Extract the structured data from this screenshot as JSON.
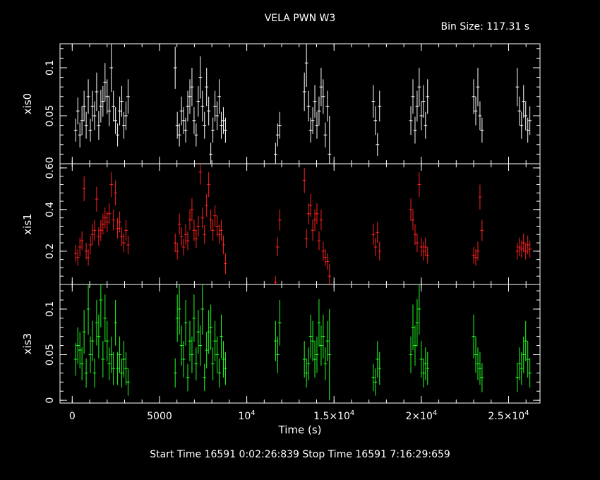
{
  "header": {
    "title": "VELA PWN W3",
    "bin_size": "Bin Size: 117.31 s"
  },
  "footer": {
    "times": "Start Time 16591   0:02:26:839     Stop Time 16591   7:16:29:659"
  },
  "colors": {
    "xis0": "#ffffff",
    "xis1": "#ff2020",
    "xis3": "#20ff20",
    "axes": "#ffffff"
  },
  "chart_data": {
    "type": "scatter",
    "xlabel": "Time (s)",
    "xlim": [
      -700,
      26800
    ],
    "x_ticks": [
      {
        "v": 0,
        "label": "0"
      },
      {
        "v": 5000,
        "label": "5000"
      },
      {
        "v": 10000,
        "label": "10",
        "exp": "4"
      },
      {
        "v": 15000,
        "label": "1.5×10",
        "exp": "4"
      },
      {
        "v": 20000,
        "label": "2×10",
        "exp": "4"
      },
      {
        "v": 25000,
        "label": "2.5×10",
        "exp": "4"
      }
    ],
    "panels": [
      {
        "name": "xis0",
        "ylabel": "xis0",
        "ylim": [
          0,
          0.125
        ],
        "y_ticks": [
          {
            "v": 0.05,
            "label": "0.05"
          },
          {
            "v": 0.1,
            "label": "0.1"
          }
        ],
        "color": "#ffffff",
        "series": {
          "x": [
            200,
            320,
            440,
            560,
            680,
            800,
            920,
            1040,
            1160,
            1280,
            1400,
            1520,
            1640,
            1760,
            1880,
            2000,
            2120,
            2240,
            2360,
            2480,
            2600,
            2720,
            2840,
            2960,
            3080,
            3200,
            5900,
            6020,
            6140,
            6260,
            6380,
            6500,
            6620,
            6740,
            6860,
            6980,
            7100,
            7220,
            7340,
            7460,
            7580,
            7700,
            7820,
            7940,
            8060,
            8180,
            8300,
            8420,
            8540,
            8660,
            8780,
            11650,
            11770,
            11890,
            13300,
            13420,
            13540,
            13660,
            13780,
            13900,
            14020,
            14140,
            14260,
            14380,
            14500,
            14620,
            14740,
            17250,
            17370,
            17490,
            17610,
            19400,
            19520,
            19640,
            19760,
            19880,
            20000,
            20120,
            20240,
            20360,
            23000,
            23120,
            23240,
            23360,
            23480,
            25500,
            25620,
            25740,
            25860,
            25980,
            26100,
            26220
          ],
          "y": [
            0.035,
            0.055,
            0.03,
            0.045,
            0.06,
            0.04,
            0.07,
            0.035,
            0.06,
            0.05,
            0.075,
            0.04,
            0.06,
            0.065,
            0.085,
            0.07,
            0.055,
            0.1,
            0.06,
            0.045,
            0.03,
            0.055,
            0.065,
            0.04,
            0.05,
            0.07,
            0.1,
            0.04,
            0.03,
            0.055,
            0.045,
            0.035,
            0.06,
            0.07,
            0.08,
            0.045,
            0.03,
            0.065,
            0.09,
            0.06,
            0.04,
            0.08,
            0.055,
            0.01,
            0.035,
            0.06,
            0.05,
            0.07,
            0.04,
            0.045,
            0.035,
            0.01,
            0.03,
            0.04,
            0.075,
            0.105,
            0.06,
            0.035,
            0.045,
            0.065,
            0.04,
            0.055,
            0.08,
            0.07,
            0.03,
            0.06,
            0.01,
            0.065,
            0.045,
            0.02,
            0.06,
            0.045,
            0.07,
            0.035,
            0.06,
            0.08,
            0.05,
            0.065,
            0.04,
            0.07,
            0.07,
            0.055,
            0.08,
            0.05,
            0.035,
            0.08,
            0.055,
            0.04,
            0.065,
            0.05,
            0.035,
            0.045
          ],
          "err": [
            0.012,
            0.014,
            0.013,
            0.015,
            0.016,
            0.014,
            0.018,
            0.012,
            0.016,
            0.015,
            0.02,
            0.015,
            0.017,
            0.016,
            0.02,
            0.018,
            0.016,
            0.025,
            0.016,
            0.014,
            0.012,
            0.015,
            0.016,
            0.014,
            0.015,
            0.018,
            0.022,
            0.014,
            0.012,
            0.015,
            0.014,
            0.013,
            0.016,
            0.018,
            0.02,
            0.014,
            0.012,
            0.016,
            0.022,
            0.016,
            0.014,
            0.02,
            0.015,
            0.012,
            0.013,
            0.016,
            0.015,
            0.018,
            0.014,
            0.014,
            0.013,
            0.012,
            0.012,
            0.014,
            0.02,
            0.025,
            0.016,
            0.013,
            0.014,
            0.017,
            0.014,
            0.015,
            0.02,
            0.018,
            0.013,
            0.016,
            0.04,
            0.017,
            0.015,
            0.012,
            0.016,
            0.015,
            0.018,
            0.014,
            0.016,
            0.02,
            0.015,
            0.017,
            0.014,
            0.018,
            0.018,
            0.015,
            0.02,
            0.015,
            0.013,
            0.02,
            0.015,
            0.014,
            0.017,
            0.015,
            0.013,
            0.015
          ]
        }
      },
      {
        "name": "xis1",
        "ylabel": "xis1",
        "ylim": [
          0.04,
          0.62
        ],
        "y_ticks": [
          {
            "v": 0.2,
            "label": "0.2"
          },
          {
            "v": 0.4,
            "label": "0.4"
          },
          {
            "v": 0.6,
            "label": "0.60"
          }
        ],
        "color": "#ff2020",
        "series": {
          "x": [
            200,
            320,
            440,
            560,
            680,
            800,
            920,
            1040,
            1160,
            1280,
            1400,
            1520,
            1640,
            1760,
            1880,
            2000,
            2120,
            2240,
            2360,
            2480,
            2600,
            2720,
            2840,
            2960,
            3080,
            3200,
            5900,
            6020,
            6140,
            6260,
            6380,
            6500,
            6620,
            6740,
            6860,
            6980,
            7100,
            7220,
            7340,
            7460,
            7580,
            7700,
            7820,
            7940,
            8060,
            8180,
            8300,
            8420,
            8540,
            8660,
            8780,
            11650,
            11770,
            11890,
            13300,
            13420,
            13540,
            13660,
            13780,
            13900,
            14020,
            14140,
            14260,
            14380,
            14500,
            14620,
            14740,
            17250,
            17370,
            17490,
            17610,
            19400,
            19520,
            19640,
            19760,
            19880,
            20000,
            20120,
            20240,
            20360,
            23000,
            23120,
            23240,
            23360,
            23480,
            25500,
            25620,
            25740,
            25860,
            25980,
            26100,
            26220
          ],
          "y": [
            0.19,
            0.17,
            0.22,
            0.25,
            0.5,
            0.2,
            0.17,
            0.23,
            0.28,
            0.3,
            0.45,
            0.27,
            0.3,
            0.33,
            0.36,
            0.34,
            0.38,
            0.52,
            0.35,
            0.48,
            0.31,
            0.34,
            0.27,
            0.24,
            0.3,
            0.23,
            0.24,
            0.2,
            0.33,
            0.27,
            0.22,
            0.28,
            0.25,
            0.35,
            0.4,
            0.3,
            0.26,
            0.32,
            0.58,
            0.36,
            0.28,
            0.42,
            0.52,
            0.35,
            0.3,
            0.37,
            0.32,
            0.28,
            0.3,
            0.23,
            0.14,
            0.05,
            0.22,
            0.35,
            0.54,
            0.26,
            0.38,
            0.42,
            0.3,
            0.35,
            0.38,
            0.25,
            0.35,
            0.2,
            0.17,
            0.15,
            0.08,
            0.28,
            0.22,
            0.29,
            0.2,
            0.4,
            0.35,
            0.28,
            0.24,
            0.52,
            0.22,
            0.2,
            0.22,
            0.18,
            0.18,
            0.17,
            0.2,
            0.46,
            0.3,
            0.2,
            0.22,
            0.21,
            0.24,
            0.2,
            0.23,
            0.21
          ],
          "err": [
            0.04,
            0.04,
            0.045,
            0.045,
            0.06,
            0.04,
            0.04,
            0.045,
            0.05,
            0.05,
            0.06,
            0.045,
            0.05,
            0.05,
            0.05,
            0.05,
            0.05,
            0.06,
            0.05,
            0.06,
            0.05,
            0.05,
            0.045,
            0.045,
            0.05,
            0.045,
            0.045,
            0.04,
            0.05,
            0.045,
            0.04,
            0.05,
            0.045,
            0.05,
            0.055,
            0.05,
            0.045,
            0.05,
            0.06,
            0.05,
            0.045,
            0.055,
            0.06,
            0.05,
            0.05,
            0.05,
            0.05,
            0.045,
            0.05,
            0.045,
            0.05,
            0.03,
            0.045,
            0.05,
            0.06,
            0.045,
            0.05,
            0.055,
            0.05,
            0.05,
            0.05,
            0.045,
            0.05,
            0.045,
            0.04,
            0.04,
            0.06,
            0.05,
            0.045,
            0.05,
            0.045,
            0.055,
            0.05,
            0.05,
            0.045,
            0.06,
            0.045,
            0.045,
            0.045,
            0.04,
            0.04,
            0.04,
            0.045,
            0.06,
            0.05,
            0.04,
            0.045,
            0.04,
            0.045,
            0.04,
            0.045,
            0.04
          ]
        }
      },
      {
        "name": "xis3",
        "ylabel": "xis3",
        "ylim": [
          -0.003,
          0.127
        ],
        "y_ticks": [
          {
            "v": 0,
            "label": "0"
          },
          {
            "v": 0.05,
            "label": "0.05"
          },
          {
            "v": 0.1,
            "label": "0.1"
          }
        ],
        "color": "#20ff20",
        "series": {
          "x": [
            200,
            320,
            440,
            560,
            680,
            800,
            920,
            1040,
            1160,
            1280,
            1400,
            1520,
            1640,
            1760,
            1880,
            2000,
            2120,
            2240,
            2360,
            2480,
            2600,
            2720,
            2840,
            2960,
            3080,
            3200,
            5900,
            6020,
            6140,
            6260,
            6380,
            6500,
            6620,
            6740,
            6860,
            6980,
            7100,
            7220,
            7340,
            7460,
            7580,
            7700,
            7820,
            7940,
            8060,
            8180,
            8300,
            8420,
            8540,
            8660,
            8780,
            11650,
            11770,
            11890,
            13300,
            13420,
            13540,
            13660,
            13780,
            13900,
            14020,
            14140,
            14260,
            14380,
            14500,
            14620,
            14740,
            17250,
            17370,
            17490,
            17610,
            19400,
            19520,
            19640,
            19760,
            19880,
            20000,
            20120,
            20240,
            20360,
            23000,
            23120,
            23240,
            23360,
            23480,
            25500,
            25620,
            25740,
            25860,
            25980,
            26100,
            26220
          ],
          "y": [
            0.045,
            0.06,
            0.055,
            0.04,
            0.075,
            0.03,
            0.1,
            0.05,
            0.065,
            0.03,
            0.085,
            0.07,
            0.11,
            0.045,
            0.09,
            0.065,
            0.04,
            0.05,
            0.035,
            0.085,
            0.035,
            0.05,
            0.03,
            0.045,
            0.035,
            0.02,
            0.03,
            0.09,
            0.1,
            0.06,
            0.045,
            0.085,
            0.025,
            0.065,
            0.05,
            0.09,
            0.04,
            0.075,
            0.06,
            0.1,
            0.025,
            0.055,
            0.075,
            0.08,
            0.04,
            0.065,
            0.05,
            0.03,
            0.07,
            0.045,
            0.035,
            0.065,
            0.05,
            0.085,
            0.045,
            0.03,
            0.04,
            0.07,
            0.065,
            0.045,
            0.05,
            0.085,
            0.06,
            0.07,
            0.04,
            0.065,
            0.05,
            0.025,
            0.02,
            0.045,
            0.035,
            0.05,
            0.08,
            0.06,
            0.085,
            0.1,
            0.045,
            0.03,
            0.04,
            0.035,
            0.07,
            0.05,
            0.04,
            0.035,
            0.025,
            0.025,
            0.04,
            0.035,
            0.05,
            0.065,
            0.045,
            0.03
          ],
          "err": [
            0.018,
            0.02,
            0.02,
            0.018,
            0.024,
            0.016,
            0.028,
            0.02,
            0.022,
            0.016,
            0.025,
            0.024,
            0.03,
            0.02,
            0.026,
            0.022,
            0.018,
            0.02,
            0.018,
            0.025,
            0.018,
            0.02,
            0.016,
            0.02,
            0.018,
            0.015,
            0.016,
            0.026,
            0.028,
            0.022,
            0.02,
            0.025,
            0.015,
            0.022,
            0.02,
            0.026,
            0.018,
            0.024,
            0.022,
            0.028,
            0.015,
            0.02,
            0.024,
            0.025,
            0.018,
            0.022,
            0.02,
            0.016,
            0.024,
            0.02,
            0.018,
            0.022,
            0.02,
            0.025,
            0.02,
            0.016,
            0.018,
            0.024,
            0.022,
            0.02,
            0.02,
            0.026,
            0.022,
            0.024,
            0.018,
            0.022,
            0.05,
            0.015,
            0.015,
            0.02,
            0.018,
            0.02,
            0.025,
            0.022,
            0.026,
            0.028,
            0.02,
            0.016,
            0.018,
            0.018,
            0.024,
            0.02,
            0.018,
            0.018,
            0.016,
            0.016,
            0.018,
            0.018,
            0.02,
            0.022,
            0.02,
            0.016
          ]
        }
      }
    ]
  }
}
